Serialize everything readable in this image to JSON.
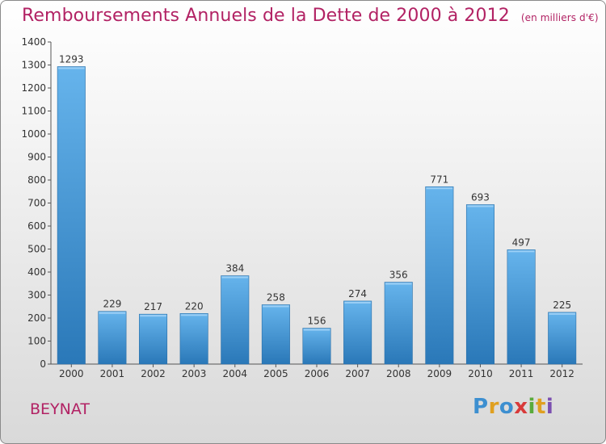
{
  "title": "Remboursements Annuels de la Dette de 2000 à 2012",
  "unit_note": "(en milliers d'€)",
  "commune": "BEYNAT",
  "logo": {
    "letters": [
      "P",
      "r",
      "o",
      "x",
      "i",
      "t",
      "i"
    ],
    "colors": [
      "#3d8fd0",
      "#e0a020",
      "#3d8fd0",
      "#d83a3a",
      "#5aab3c",
      "#e0a020",
      "#7b4fb0"
    ]
  },
  "colors": {
    "bar": "#3d8fd0",
    "bar_top": "#66b4ec",
    "bar_bottom": "#2a78b8",
    "title": "#b22264"
  },
  "chart_data": {
    "type": "bar",
    "title": "Remboursements Annuels de la Dette de 2000 à 2012",
    "categories": [
      "2000",
      "2001",
      "2002",
      "2003",
      "2004",
      "2005",
      "2006",
      "2007",
      "2008",
      "2009",
      "2010",
      "2011",
      "2012"
    ],
    "values": [
      1293,
      229,
      217,
      220,
      384,
      258,
      156,
      274,
      356,
      771,
      693,
      497,
      225
    ],
    "ylim": [
      0,
      1400
    ],
    "yticks": [
      0,
      100,
      200,
      300,
      400,
      500,
      600,
      700,
      800,
      900,
      1000,
      1100,
      1200,
      1300,
      1400
    ],
    "grid": false,
    "xlabel": "",
    "ylabel": ""
  }
}
